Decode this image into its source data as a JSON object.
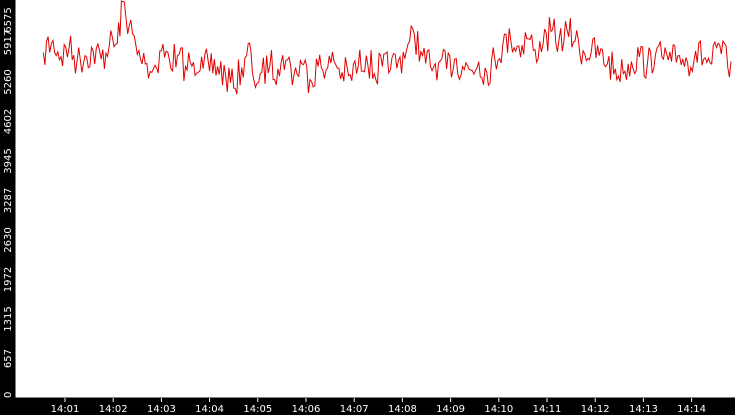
{
  "chart_data": {
    "type": "line",
    "title": "",
    "xlabel": "",
    "ylabel": "",
    "ylim": [
      0,
      6575
    ],
    "xlim": [
      "14:00:33",
      "14:14:49"
    ],
    "y_ticks": [
      "0",
      "657",
      "1315",
      "1972",
      "2630",
      "3287",
      "3945",
      "4602",
      "5260",
      "5917",
      "6575"
    ],
    "x_ticks": [
      "14:01",
      "14:02",
      "14:03",
      "14:04",
      "14:05",
      "14:06",
      "14:07",
      "14:08",
      "14:09",
      "14:10",
      "14:11",
      "14:12",
      "14:13",
      "14:14"
    ],
    "grid": false,
    "legend": "none",
    "series": [
      {
        "x": [
          "14:00:33",
          "14:00:45",
          "14:00:55",
          "14:01:05",
          "14:01:15",
          "14:01:25",
          "14:01:35",
          "14:01:45",
          "14:01:55",
          "14:02:05",
          "14:02:12",
          "14:02:20",
          "14:02:30",
          "14:02:40",
          "14:02:50",
          "14:03:00",
          "14:03:10",
          "14:03:20",
          "14:03:30",
          "14:03:40",
          "14:03:50",
          "14:04:00",
          "14:04:10",
          "14:04:20",
          "14:04:30",
          "14:04:40",
          "14:04:48",
          "14:04:55",
          "14:05:05",
          "14:05:15",
          "14:05:25",
          "14:05:35",
          "14:05:45",
          "14:05:55",
          "14:06:05",
          "14:06:15",
          "14:06:25",
          "14:06:35",
          "14:06:45",
          "14:06:55",
          "14:07:05",
          "14:07:15",
          "14:07:25",
          "14:07:35",
          "14:07:45",
          "14:07:55",
          "14:08:05",
          "14:08:15",
          "14:08:25",
          "14:08:35",
          "14:08:45",
          "14:08:55",
          "14:09:05",
          "14:09:15",
          "14:09:25",
          "14:09:35",
          "14:09:45",
          "14:09:55",
          "14:10:05",
          "14:10:15",
          "14:10:25",
          "14:10:35",
          "14:10:45",
          "14:10:55",
          "14:11:05",
          "14:11:15",
          "14:11:25",
          "14:11:35",
          "14:11:45",
          "14:11:55",
          "14:12:05",
          "14:12:15",
          "14:12:25",
          "14:12:35",
          "14:12:45",
          "14:12:55",
          "14:13:05",
          "14:13:15",
          "14:13:25",
          "14:13:35",
          "14:13:45",
          "14:13:55",
          "14:14:05",
          "14:14:15",
          "14:14:25",
          "14:14:35",
          "14:14:45",
          "14:14:49"
        ],
        "y": [
          5750,
          5950,
          5680,
          5820,
          5600,
          5700,
          5780,
          5640,
          5860,
          5900,
          6600,
          6200,
          5720,
          5560,
          5480,
          5780,
          5630,
          5700,
          5520,
          5590,
          5680,
          5440,
          5520,
          5360,
          5160,
          5500,
          5900,
          5300,
          5420,
          5540,
          5480,
          5620,
          5380,
          5560,
          5300,
          5520,
          5460,
          5600,
          5420,
          5380,
          5520,
          5700,
          5400,
          5520,
          5460,
          5620,
          5780,
          6050,
          5700,
          5520,
          5580,
          5480,
          5640,
          5520,
          5460,
          5600,
          5420,
          5640,
          5880,
          5940,
          5860,
          5980,
          5800,
          5880,
          6100,
          5960,
          6120,
          5940,
          5780,
          5760,
          5700,
          5560,
          5480,
          5400,
          5600,
          5680,
          5560,
          5720,
          5640,
          5600,
          5700,
          5580,
          5780,
          5640,
          5560,
          5880,
          5500,
          5600
        ]
      }
    ]
  }
}
